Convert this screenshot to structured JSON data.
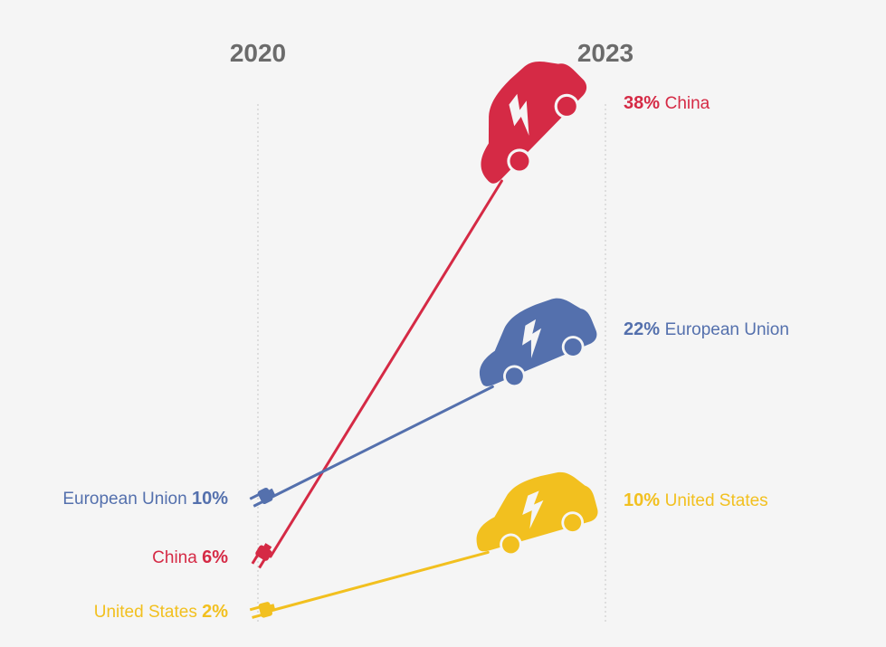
{
  "chart_data": {
    "type": "slope",
    "x": [
      "2020",
      "2023"
    ],
    "series": [
      {
        "name": "China",
        "values": [
          6,
          38
        ],
        "color": "#d52a45"
      },
      {
        "name": "European Union",
        "values": [
          10,
          22
        ],
        "color": "#5470ad"
      },
      {
        "name": "United States",
        "values": [
          2,
          10
        ],
        "color": "#f2c01f"
      }
    ],
    "labels_2020": [
      "European Union 10%",
      "China 6%",
      "United States 2%"
    ],
    "labels_2023": [
      "38% China",
      "22% European Union",
      "10% United States"
    ],
    "icons": {
      "start": "plug-icon",
      "end": "electric-car-icon"
    }
  }
}
